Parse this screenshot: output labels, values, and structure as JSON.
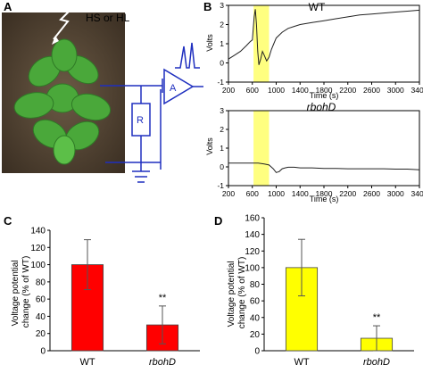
{
  "panels": {
    "a": "A",
    "b": "B",
    "c": "C",
    "d": "D"
  },
  "schematic": {
    "stimulus_label": "HS or HL",
    "resistor_label": "R",
    "amplifier_label": "A",
    "colors": {
      "circuit": "#1f2fbf",
      "plant": "#4aa83a",
      "soil": "#4a3a2a"
    }
  },
  "chart_data": [
    {
      "id": "B-WT",
      "type": "line",
      "title": "WT",
      "xlabel": "Time (s)",
      "ylabel": "Volts",
      "xlim": [
        200,
        3400
      ],
      "ylim": [
        -1,
        3
      ],
      "xticks": [
        200,
        600,
        1000,
        1400,
        1800,
        2200,
        2600,
        3000,
        3400
      ],
      "yticks": [
        -1,
        0,
        1,
        2,
        3
      ],
      "highlight": {
        "x": [
          620,
          880
        ],
        "color": "#ffff80"
      },
      "series": [
        {
          "color": "#222222",
          "x": [
            200,
            300,
            400,
            500,
            560,
            600,
            630,
            650,
            670,
            690,
            710,
            740,
            770,
            800,
            840,
            880,
            920,
            960,
            1000,
            1100,
            1200,
            1300,
            1400,
            1600,
            1800,
            2000,
            2200,
            2400,
            2600,
            2800,
            3000,
            3200,
            3400
          ],
          "y": [
            0.2,
            0.4,
            0.6,
            0.9,
            1.1,
            1.2,
            2.4,
            2.8,
            2.0,
            0.6,
            -0.1,
            0.2,
            0.6,
            0.4,
            0.1,
            0.3,
            0.7,
            1.0,
            1.3,
            1.6,
            1.8,
            1.9,
            2.0,
            2.1,
            2.2,
            2.3,
            2.4,
            2.5,
            2.55,
            2.6,
            2.65,
            2.7,
            2.75
          ]
        }
      ]
    },
    {
      "id": "B-rbohD",
      "type": "line",
      "title": "rbohD",
      "xlabel": "Time (s)",
      "ylabel": "Volts",
      "xlim": [
        200,
        3400
      ],
      "ylim": [
        -1,
        3
      ],
      "xticks": [
        200,
        600,
        1000,
        1400,
        1800,
        2200,
        2600,
        3000,
        3400
      ],
      "yticks": [
        -1,
        0,
        1,
        2,
        3
      ],
      "highlight": {
        "x": [
          620,
          880
        ],
        "color": "#ffff80"
      },
      "series": [
        {
          "color": "#222222",
          "x": [
            200,
            400,
            600,
            700,
            800,
            880,
            950,
            1000,
            1050,
            1100,
            1150,
            1200,
            1300,
            1400,
            1600,
            1800,
            2000,
            2200,
            2400,
            2600,
            2800,
            3000,
            3200,
            3400
          ],
          "y": [
            0.2,
            0.2,
            0.2,
            0.2,
            0.15,
            0.1,
            -0.1,
            -0.3,
            -0.25,
            -0.1,
            -0.05,
            -0.02,
            -0.02,
            -0.05,
            -0.05,
            -0.08,
            -0.08,
            -0.1,
            -0.1,
            -0.1,
            -0.1,
            -0.12,
            -0.12,
            -0.15
          ]
        }
      ]
    },
    {
      "id": "C",
      "type": "bar",
      "categories": [
        "WT",
        "rbohD"
      ],
      "values": [
        100,
        30
      ],
      "errors": [
        29,
        22
      ],
      "annotations": [
        "",
        "**"
      ],
      "ylabel": "Voltage potential change (% of WT)",
      "ylim": [
        0,
        140
      ],
      "yticks": [
        0,
        20,
        40,
        60,
        80,
        100,
        120,
        140
      ],
      "bar_color": "#ff0000"
    },
    {
      "id": "D",
      "type": "bar",
      "categories": [
        "WT",
        "rbohD"
      ],
      "values": [
        100,
        15
      ],
      "errors": [
        34,
        15
      ],
      "annotations": [
        "",
        "**"
      ],
      "ylabel": "Voltage potential change (% of WT)",
      "ylim": [
        0,
        160
      ],
      "yticks": [
        0,
        20,
        40,
        60,
        80,
        100,
        120,
        140,
        160
      ],
      "bar_color": "#ffff00"
    }
  ]
}
